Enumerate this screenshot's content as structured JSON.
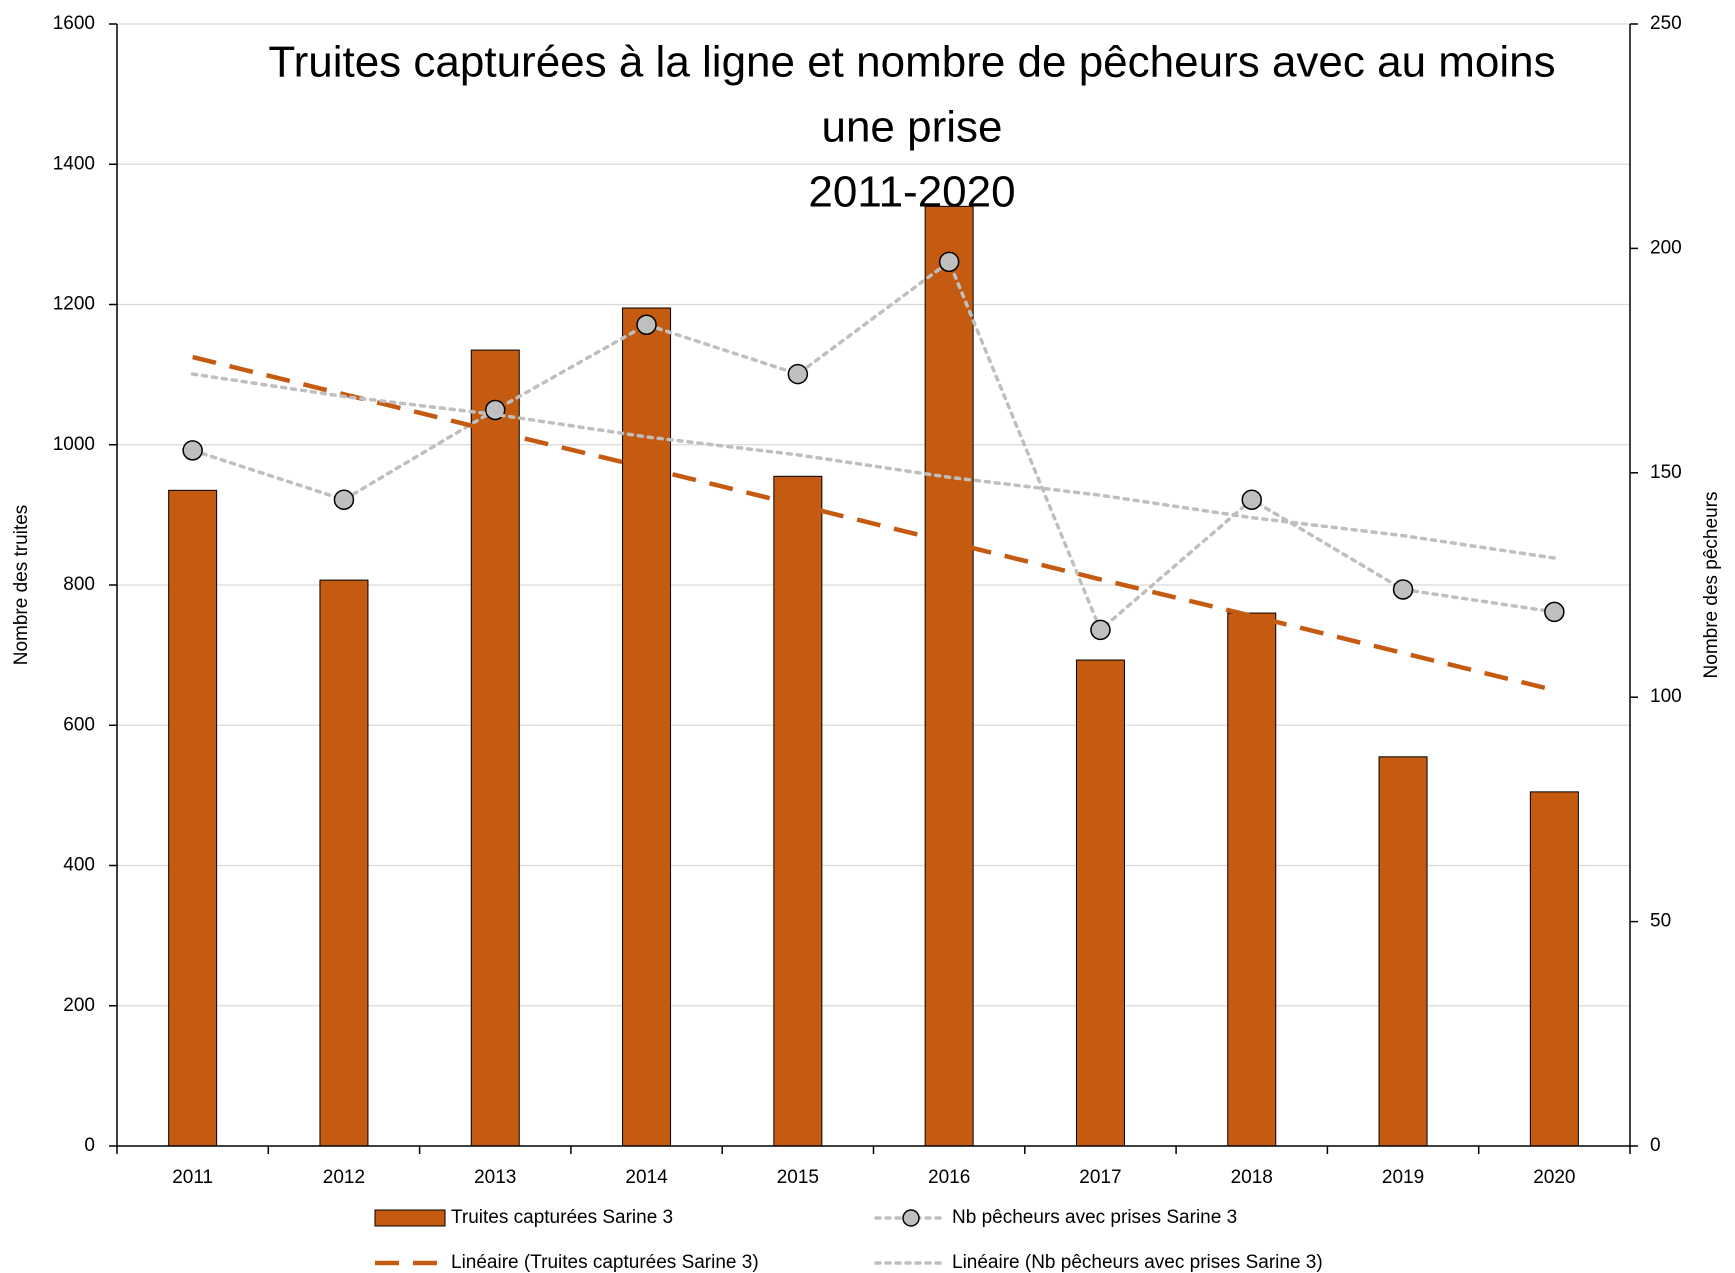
{
  "chart_data": {
    "type": "bar",
    "title": [
      "Truites capturées à la ligne et nombre de pêcheurs avec au moins",
      "une prise",
      "2011-2020"
    ],
    "categories": [
      "2011",
      "2012",
      "2013",
      "2014",
      "2015",
      "2016",
      "2017",
      "2018",
      "2019",
      "2020"
    ],
    "ylabel": "Nombre des truites",
    "y2label": "Nombre des pêcheurs",
    "ylim": [
      0,
      1600
    ],
    "yticks": [
      0,
      200,
      400,
      600,
      800,
      1000,
      1200,
      1400,
      1600
    ],
    "y2lim": [
      0,
      250
    ],
    "y2ticks": [
      0,
      50,
      100,
      150,
      200,
      250
    ],
    "grid": true,
    "legend": "bottom",
    "series": [
      {
        "name": "Truites capturées Sarine 3",
        "type": "bar",
        "color": "#c55a11",
        "axis": "y",
        "values": [
          935,
          807,
          1135,
          1195,
          955,
          1340,
          693,
          760,
          555,
          505
        ]
      },
      {
        "name": "Nb pêcheurs avec prises Sarine 3",
        "type": "line",
        "color": "#bfbfbf",
        "marker": true,
        "dash": "dotted",
        "axis": "y2",
        "values": [
          155,
          144,
          164,
          183,
          172,
          197,
          115,
          144,
          124,
          119
        ]
      },
      {
        "name": "Linéaire (Truites capturées Sarine 3)",
        "type": "line",
        "color": "#c55a11",
        "dash": "dashed",
        "axis": "y",
        "values": [
          1125,
          1072,
          1019,
          967,
          914,
          861,
          808,
          756,
          703,
          650
        ]
      },
      {
        "name": "Linéaire (Nb pêcheurs avec prises Sarine 3)",
        "type": "line",
        "color": "#bfbfbf",
        "dash": "dotted",
        "axis": "y2",
        "values": [
          172,
          167,
          163,
          158,
          154,
          149,
          145,
          140,
          136,
          131
        ]
      }
    ]
  }
}
